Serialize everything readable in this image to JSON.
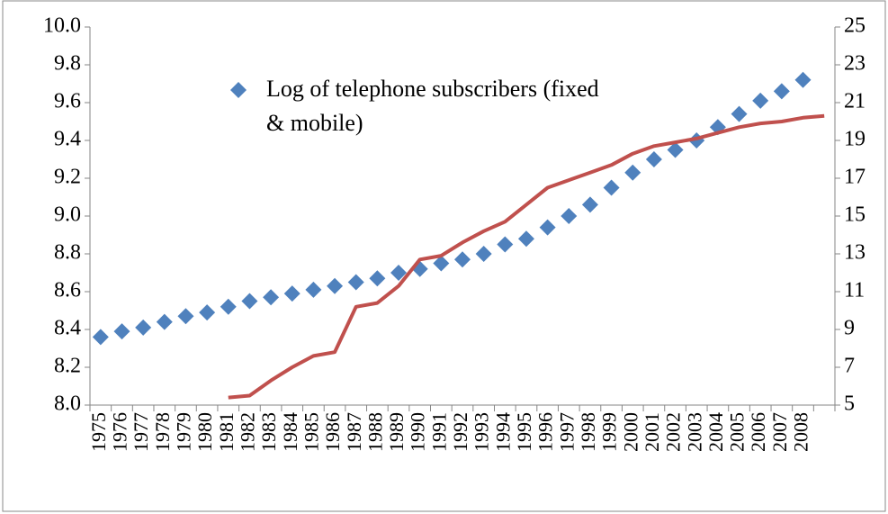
{
  "chart_data": {
    "type": "line",
    "categories": [
      "1975",
      "1976",
      "1977",
      "1978",
      "1979",
      "1980",
      "1981",
      "1982",
      "1983",
      "1984",
      "1985",
      "1986",
      "1987",
      "1988",
      "1989",
      "1990",
      "1991",
      "1992",
      "1993",
      "1994",
      "1995",
      "1996",
      "1997",
      "1998",
      "1999",
      "2000",
      "2001",
      "2002",
      "2003",
      "2004",
      "2005",
      "2006",
      "2007",
      "2008",
      null
    ],
    "series": [
      {
        "name": "Log of telephone subscribers (fixed & mobile)",
        "color": "#4f81bd",
        "marker": "diamond",
        "values": [
          8.36,
          8.39,
          8.41,
          8.44,
          8.47,
          8.49,
          8.52,
          8.55,
          8.57,
          8.59,
          8.61,
          8.63,
          8.65,
          8.67,
          8.7,
          8.72,
          8.75,
          8.77,
          8.8,
          8.85,
          8.88,
          8.94,
          9.0,
          9.06,
          9.15,
          9.23,
          9.3,
          9.35,
          9.4,
          9.47,
          9.54,
          9.61,
          9.66,
          9.72,
          null
        ]
      },
      {
        "color": "#c0504d",
        "axis": "y2",
        "values": [
          null,
          null,
          null,
          null,
          null,
          null,
          5.4,
          5.5,
          6.3,
          7.0,
          7.6,
          7.8,
          10.2,
          10.4,
          11.3,
          12.7,
          12.9,
          13.6,
          14.2,
          14.7,
          15.6,
          16.5,
          16.9,
          17.3,
          17.7,
          18.3,
          18.7,
          18.9,
          19.1,
          19.4,
          19.7,
          19.9,
          20.0,
          20.2,
          20.3
        ]
      }
    ],
    "ylim": [
      8.0,
      10.0
    ],
    "yticks": [
      {
        "value": 8,
        "label": "8.0"
      },
      8.2,
      8.4,
      8.6,
      8.8,
      {
        "value": 9,
        "label": "9.0"
      },
      9.2,
      9.4,
      9.6,
      9.8,
      {
        "value": 10,
        "label": "10.0"
      }
    ],
    "y2lim": [
      5,
      25
    ],
    "y2ticks": [
      5,
      7,
      9,
      11,
      13,
      15,
      17,
      19,
      21,
      23,
      25
    ],
    "grid": false
  }
}
